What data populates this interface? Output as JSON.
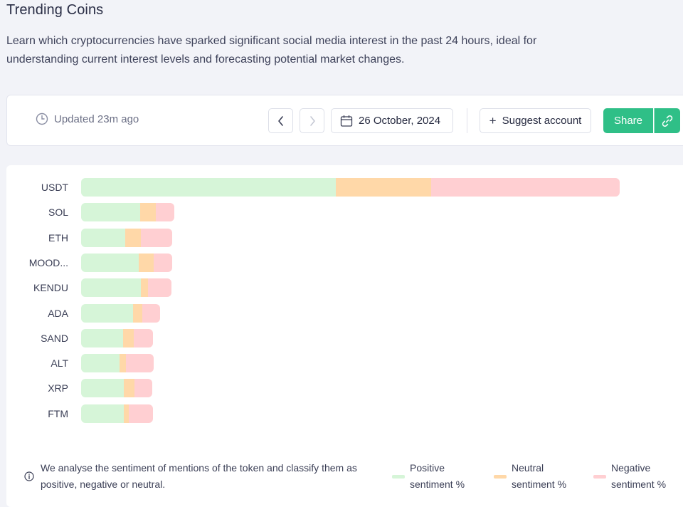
{
  "page": {
    "title": "Trending Coins",
    "description": "Learn which cryptocurrencies have sparked significant social media interest in the past 24 hours, ideal for understanding current interest levels and forecasting potential market changes."
  },
  "toolbar": {
    "updated": "Updated 23m ago",
    "date": "26 October, 2024",
    "suggest_label": "Suggest account",
    "share_label": "Share"
  },
  "colors": {
    "positive": "#d6f5d8",
    "neutral": "#ffd8a8",
    "negative": "#ffcfd2",
    "accent": "#2fbf87"
  },
  "chart_data": {
    "type": "bar",
    "stacked": true,
    "orientation": "horizontal",
    "categories": [
      "USDT",
      "SOL",
      "ETH",
      "MOOD...",
      "KENDU",
      "ADA",
      "SAND",
      "ALT",
      "XRP",
      "FTM"
    ],
    "series": [
      {
        "name": "Positive sentiment %",
        "values": [
          358,
          83,
          62,
          81,
          84,
          73,
          59,
          54,
          60,
          60
        ]
      },
      {
        "name": "Neutral sentiment %",
        "values": [
          134,
          22,
          22,
          21,
          10,
          13,
          15,
          9,
          15,
          7
        ]
      },
      {
        "name": "Negative sentiment %",
        "values": [
          265,
          26,
          44,
          26,
          33,
          25,
          27,
          39,
          25,
          34
        ]
      }
    ],
    "grid": false,
    "legend": "bottom"
  },
  "footer": {
    "note": "We analyse the sentiment of mentions of the token and classify them as positive, negative or neutral.",
    "legend": [
      {
        "label": "Positive sentiment %",
        "color": "#d6f5d8"
      },
      {
        "label": "Neutral sentiment %",
        "color": "#ffd8a8"
      },
      {
        "label": "Negative sentiment %",
        "color": "#ffcfd2"
      }
    ]
  }
}
